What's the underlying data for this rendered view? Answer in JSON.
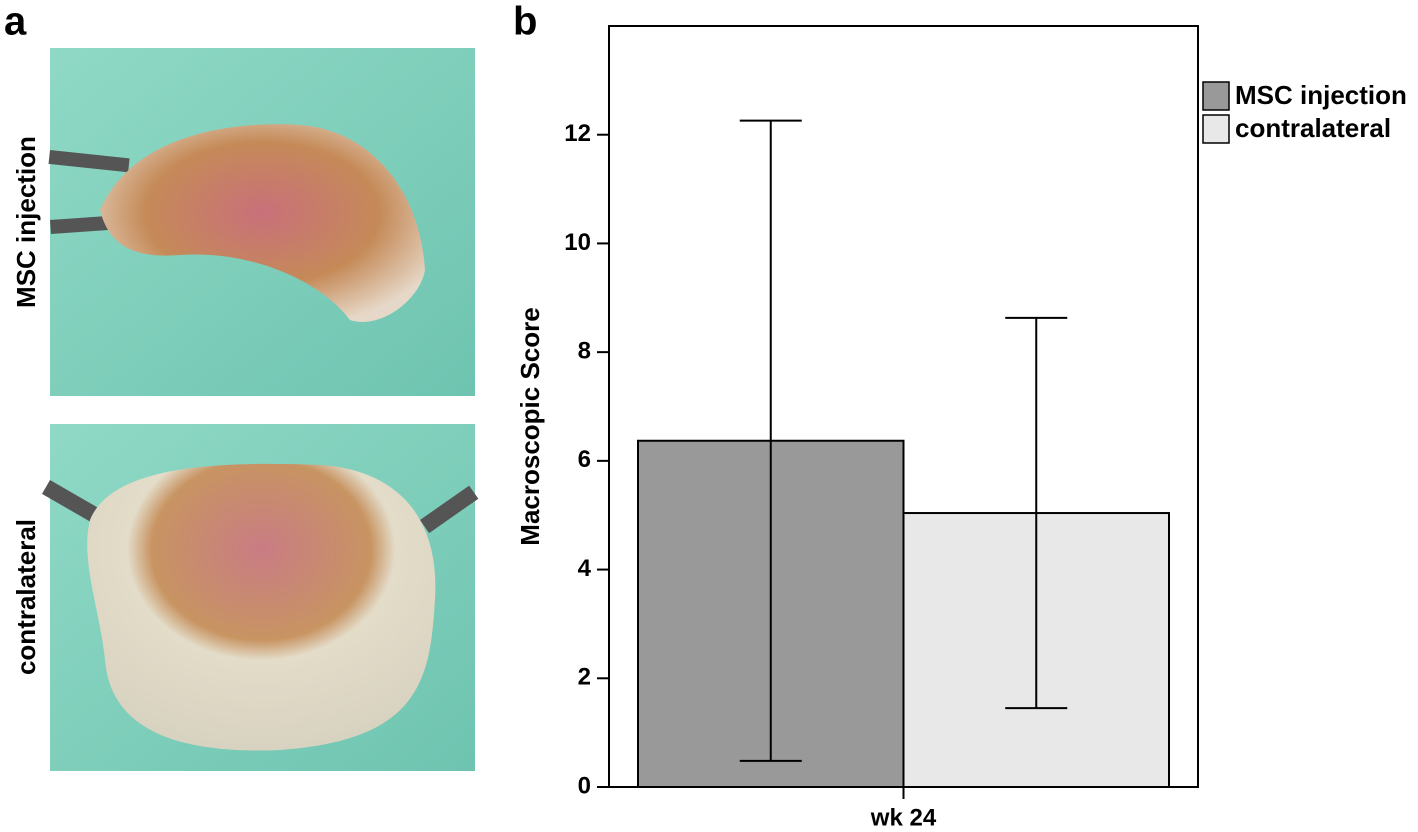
{
  "panel_a": {
    "label": "a",
    "photos": [
      {
        "label": "MSC injection"
      },
      {
        "label": "contralateral"
      }
    ]
  },
  "chart_data": {
    "type": "bar",
    "panel_label": "b",
    "categories": [
      "wk 24"
    ],
    "ylabel": "Macroscopic Score",
    "series": [
      {
        "name": "MSC injection",
        "color": "#999999",
        "values": [
          6.37
        ],
        "errors": [
          5.89
        ]
      },
      {
        "name": "contralateral",
        "color": "#e8e8e8",
        "values": [
          5.04
        ],
        "errors": [
          3.59
        ]
      }
    ],
    "ylim": [
      0,
      14
    ],
    "yticks": [
      0,
      2,
      4,
      6,
      8,
      10,
      12
    ],
    "legend": "outside-right"
  }
}
